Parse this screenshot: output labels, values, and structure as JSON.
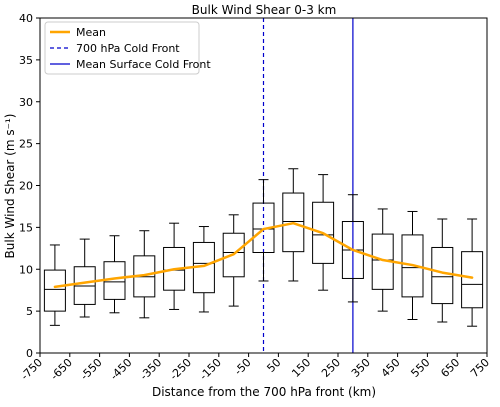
{
  "chart_data": {
    "type": "box",
    "title": "Bulk Wind Shear 0-3 km",
    "xlabel": "Distance from the 700 hPa front (km)",
    "ylabel": "Bulk Wind Shear (m s⁻¹)",
    "xlim": [
      -750,
      750
    ],
    "ylim": [
      0,
      40
    ],
    "xticks": [
      -750,
      -650,
      -550,
      -450,
      -350,
      -250,
      -150,
      -50,
      50,
      150,
      250,
      350,
      450,
      550,
      650,
      750
    ],
    "yticks": [
      0,
      5,
      10,
      15,
      20,
      25,
      30,
      35,
      40
    ],
    "grid": false,
    "legend_position": "top-left",
    "boxes": [
      {
        "x": -700,
        "whislo": 3.3,
        "q1": 5.0,
        "med": 7.6,
        "q3": 9.9,
        "whishi": 12.9
      },
      {
        "x": -600,
        "whislo": 4.3,
        "q1": 5.8,
        "med": 8.0,
        "q3": 10.3,
        "whishi": 13.6
      },
      {
        "x": -500,
        "whislo": 4.8,
        "q1": 6.4,
        "med": 8.5,
        "q3": 10.9,
        "whishi": 14.0
      },
      {
        "x": -400,
        "whislo": 4.2,
        "q1": 6.7,
        "med": 9.1,
        "q3": 11.6,
        "whishi": 14.6
      },
      {
        "x": -300,
        "whislo": 5.2,
        "q1": 7.5,
        "med": 9.9,
        "q3": 12.6,
        "whishi": 15.5
      },
      {
        "x": -200,
        "whislo": 4.9,
        "q1": 7.2,
        "med": 10.7,
        "q3": 13.2,
        "whishi": 15.1
      },
      {
        "x": -100,
        "whislo": 5.6,
        "q1": 9.1,
        "med": 12.0,
        "q3": 14.3,
        "whishi": 16.5
      },
      {
        "x": 0,
        "whislo": 8.6,
        "q1": 12.0,
        "med": 14.8,
        "q3": 17.9,
        "whishi": 20.7
      },
      {
        "x": 100,
        "whislo": 8.6,
        "q1": 12.1,
        "med": 15.7,
        "q3": 19.1,
        "whishi": 22.0
      },
      {
        "x": 200,
        "whislo": 7.5,
        "q1": 10.7,
        "med": 14.1,
        "q3": 18.0,
        "whishi": 21.3
      },
      {
        "x": 300,
        "whislo": 6.1,
        "q1": 8.9,
        "med": 12.3,
        "q3": 15.7,
        "whishi": 18.9
      },
      {
        "x": 400,
        "whislo": 5.0,
        "q1": 7.6,
        "med": 11.1,
        "q3": 14.2,
        "whishi": 17.2
      },
      {
        "x": 500,
        "whislo": 4.0,
        "q1": 6.7,
        "med": 10.2,
        "q3": 14.1,
        "whishi": 16.9
      },
      {
        "x": 600,
        "whislo": 3.7,
        "q1": 5.9,
        "med": 9.1,
        "q3": 12.6,
        "whishi": 16.0
      },
      {
        "x": 700,
        "whislo": 3.2,
        "q1": 5.4,
        "med": 8.2,
        "q3": 12.1,
        "whishi": 16.0
      }
    ],
    "mean_line": {
      "name": "Mean",
      "color": "#FFA500",
      "x": [
        -700,
        -600,
        -500,
        -400,
        -300,
        -200,
        -100,
        0,
        100,
        200,
        300,
        400,
        500,
        600,
        700
      ],
      "y": [
        7.9,
        8.4,
        8.9,
        9.3,
        10.0,
        10.4,
        11.8,
        14.8,
        15.5,
        14.3,
        12.3,
        11.1,
        10.5,
        9.6,
        9.0
      ]
    },
    "vlines": [
      {
        "name": "700 hPa Cold Front",
        "x": 0,
        "color": "#0000CC",
        "style": "dashed"
      },
      {
        "name": "Mean Surface Cold Front",
        "x": 300,
        "color": "#0000CC",
        "style": "solid"
      }
    ]
  }
}
